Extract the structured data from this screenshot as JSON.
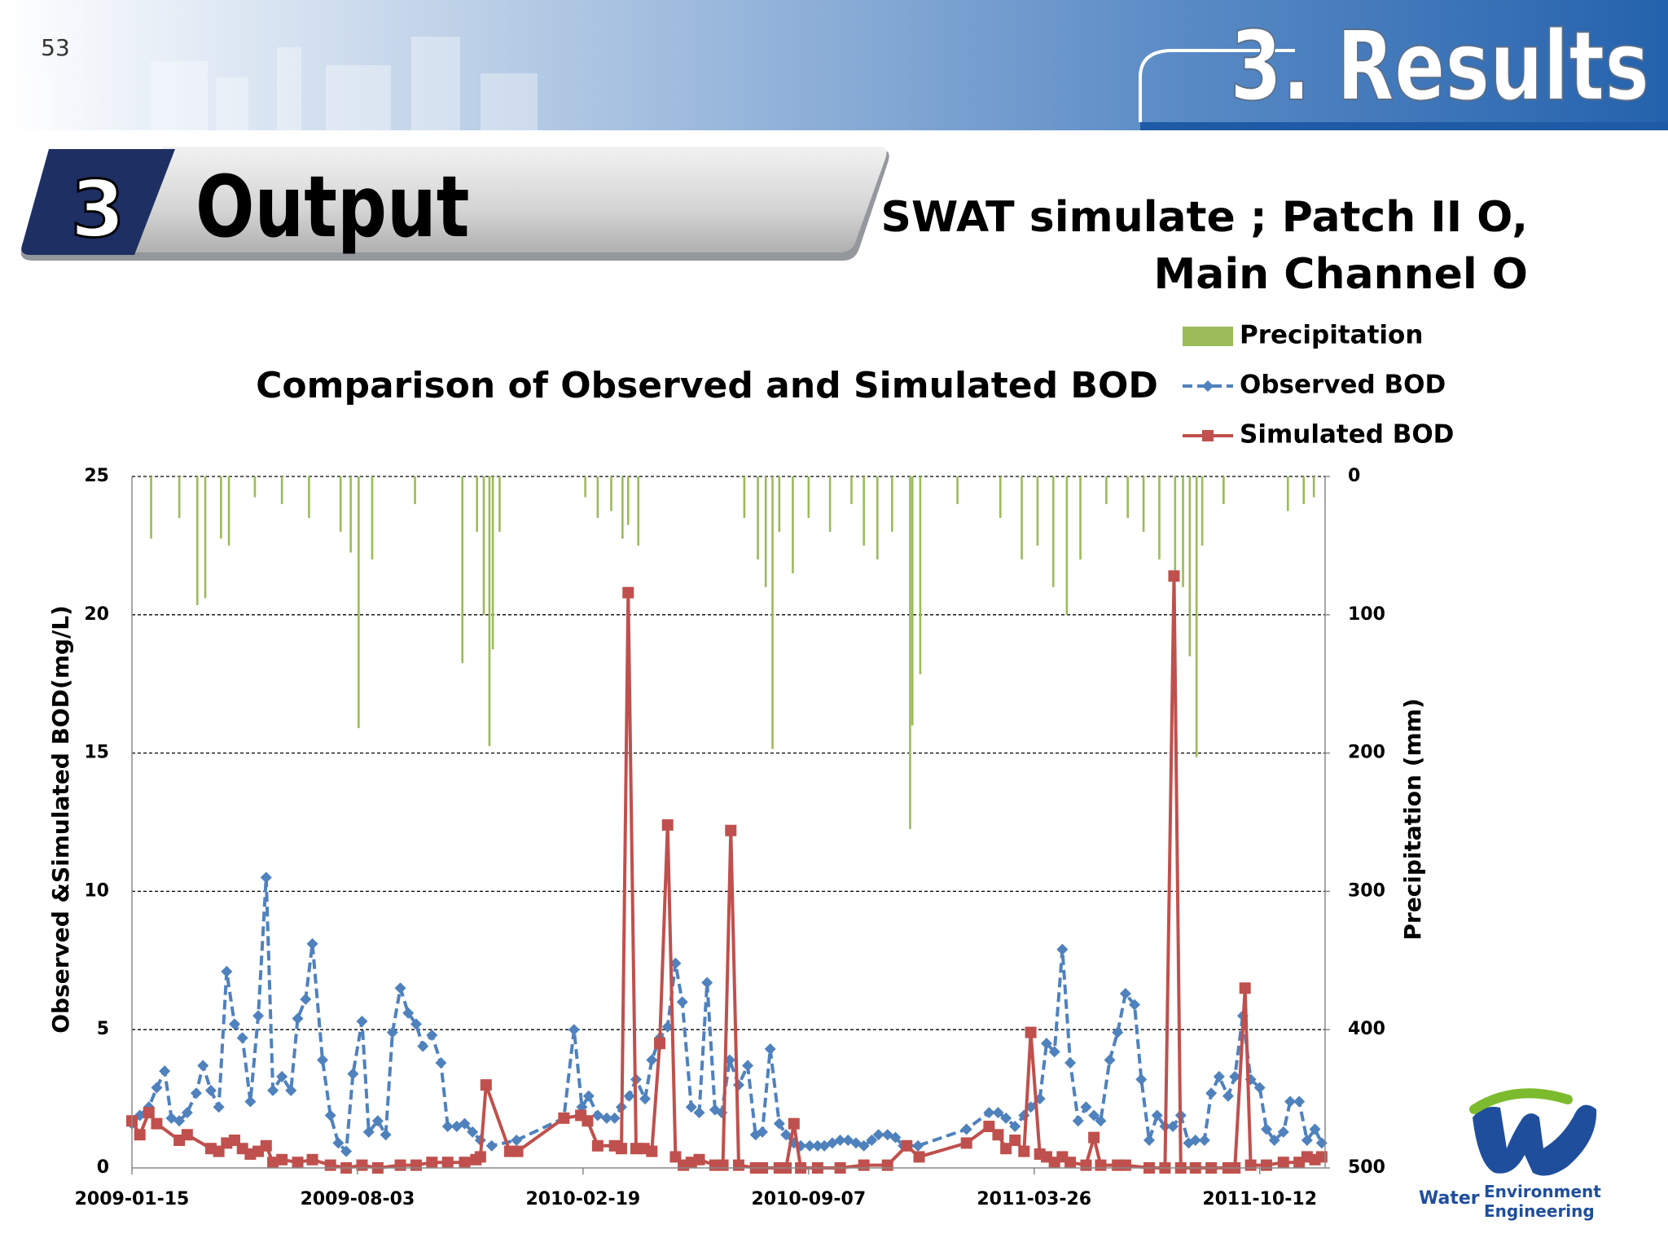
{
  "page_number": "53",
  "section_title": "3. Results",
  "banner": {
    "number": "3",
    "title": "Output"
  },
  "subtitle": [
    "SWAT simulate ; Patch II O,",
    "Main Channel O"
  ],
  "logo": {
    "lines": [
      "Water",
      "Environment",
      "Engineering"
    ]
  },
  "chart_data": {
    "type": "line",
    "title": "Comparison of Observed and Simulated BOD",
    "ylabel": "Observed &Simulated BOD(mg/L)",
    "y2label": "Precipitation (mm)",
    "xlim": [
      "2009-01-15",
      "2011-12-09"
    ],
    "xticks": [
      "2009-01-15",
      "2009-08-03",
      "2010-02-19",
      "2010-09-07",
      "2011-03-26",
      "2011-10-12"
    ],
    "ylim": [
      0,
      25
    ],
    "yticks": [
      0,
      5,
      10,
      15,
      20,
      25
    ],
    "y2lim": [
      0,
      500
    ],
    "y2ticks": [
      0,
      100,
      200,
      300,
      400,
      500
    ],
    "y2_inverted": true,
    "grid": true,
    "legend": "top-right",
    "series": [
      {
        "name": "Precipitation",
        "type": "bar",
        "axis": "y2",
        "color": "#9bbb59",
        "x": [
          "2009-02-01",
          "2009-02-26",
          "2009-03-14",
          "2009-03-21",
          "2009-04-04",
          "2009-04-11",
          "2009-05-04",
          "2009-05-28",
          "2009-06-21",
          "2009-07-19",
          "2009-07-28",
          "2009-08-04",
          "2009-08-16",
          "2009-09-23",
          "2009-11-04",
          "2009-11-17",
          "2009-11-23",
          "2009-11-28",
          "2009-12-01",
          "2009-12-07",
          "2010-02-21",
          "2010-03-04",
          "2010-03-16",
          "2010-03-26",
          "2010-03-31",
          "2010-04-09",
          "2010-07-12",
          "2010-07-24",
          "2010-07-31",
          "2010-08-06",
          "2010-08-12",
          "2010-08-24",
          "2010-09-07",
          "2010-09-26",
          "2010-10-15",
          "2010-10-26",
          "2010-11-07",
          "2010-11-20",
          "2010-12-06",
          "2010-12-08",
          "2010-12-15",
          "2011-01-17",
          "2011-02-24",
          "2011-03-15",
          "2011-03-29",
          "2011-04-12",
          "2011-04-24",
          "2011-05-06",
          "2011-05-29",
          "2011-06-17",
          "2011-07-01",
          "2011-07-15",
          "2011-07-29",
          "2011-08-05",
          "2011-08-11",
          "2011-08-17",
          "2011-08-22",
          "2011-09-10",
          "2011-11-06",
          "2011-11-20",
          "2011-11-29"
        ],
        "values": [
          45,
          30,
          93,
          88,
          45,
          50,
          15,
          20,
          30,
          40,
          55,
          182,
          60,
          20,
          135,
          40,
          100,
          195,
          125,
          40,
          15,
          30,
          25,
          45,
          35,
          50,
          30,
          60,
          80,
          197,
          40,
          70,
          30,
          40,
          20,
          50,
          60,
          40,
          255,
          180,
          143,
          20,
          30,
          60,
          50,
          80,
          100,
          60,
          20,
          30,
          40,
          60,
          70,
          80,
          130,
          203,
          50,
          20,
          25,
          20,
          15
        ]
      },
      {
        "name": "Observed BOD",
        "type": "line",
        "axis": "y",
        "color": "#4f81bd",
        "dashed": true,
        "marker": "diamond",
        "x": [
          "2009-01-15",
          "2009-01-22",
          "2009-01-30",
          "2009-02-06",
          "2009-02-13",
          "2009-02-19",
          "2009-02-26",
          "2009-03-05",
          "2009-03-13",
          "2009-03-19",
          "2009-03-26",
          "2009-04-02",
          "2009-04-09",
          "2009-04-16",
          "2009-04-23",
          "2009-04-30",
          "2009-05-07",
          "2009-05-14",
          "2009-05-20",
          "2009-05-28",
          "2009-06-05",
          "2009-06-11",
          "2009-06-18",
          "2009-06-24",
          "2009-07-03",
          "2009-07-10",
          "2009-07-17",
          "2009-07-24",
          "2009-07-30",
          "2009-08-07",
          "2009-08-13",
          "2009-08-21",
          "2009-08-28",
          "2009-09-03",
          "2009-09-10",
          "2009-09-17",
          "2009-09-24",
          "2009-09-30",
          "2009-10-08",
          "2009-10-16",
          "2009-10-22",
          "2009-10-30",
          "2009-11-06",
          "2009-11-13",
          "2009-11-20",
          "2009-11-30",
          "2009-12-22",
          "2010-02-02",
          "2010-02-11",
          "2010-02-18",
          "2010-02-24",
          "2010-03-04",
          "2010-03-12",
          "2010-03-19",
          "2010-03-25",
          "2010-04-01",
          "2010-04-07",
          "2010-04-15",
          "2010-04-21",
          "2010-04-28",
          "2010-05-05",
          "2010-05-12",
          "2010-05-18",
          "2010-05-26",
          "2010-06-02",
          "2010-06-09",
          "2010-06-16",
          "2010-06-22",
          "2010-06-29",
          "2010-07-07",
          "2010-07-15",
          "2010-07-22",
          "2010-07-28",
          "2010-08-04",
          "2010-08-12",
          "2010-08-18",
          "2010-08-25",
          "2010-08-31",
          "2010-09-08",
          "2010-09-15",
          "2010-09-21",
          "2010-09-28",
          "2010-10-05",
          "2010-10-12",
          "2010-10-19",
          "2010-10-26",
          "2010-11-02",
          "2010-11-08",
          "2010-11-16",
          "2010-11-23",
          "2010-11-30",
          "2010-12-13",
          "2011-01-25",
          "2011-02-14",
          "2011-02-22",
          "2011-03-01",
          "2011-03-09",
          "2011-03-17",
          "2011-03-23",
          "2011-03-31",
          "2011-04-06",
          "2011-04-13",
          "2011-04-20",
          "2011-04-27",
          "2011-05-04",
          "2011-05-11",
          "2011-05-18",
          "2011-05-24",
          "2011-06-01",
          "2011-06-08",
          "2011-06-15",
          "2011-06-23",
          "2011-06-29",
          "2011-07-06",
          "2011-07-13",
          "2011-07-20",
          "2011-07-27",
          "2011-08-03",
          "2011-08-10",
          "2011-08-16",
          "2011-08-24",
          "2011-08-30",
          "2011-09-06",
          "2011-09-14",
          "2011-09-20",
          "2011-09-27",
          "2011-10-04",
          "2011-10-12",
          "2011-10-18",
          "2011-10-25",
          "2011-11-02",
          "2011-11-08",
          "2011-11-16",
          "2011-11-23",
          "2011-11-30",
          "2011-12-06"
        ],
        "values": [
          1.6,
          1.9,
          2.2,
          2.9,
          3.5,
          1.8,
          1.7,
          2.0,
          2.7,
          3.7,
          2.8,
          2.2,
          7.1,
          5.2,
          4.7,
          2.4,
          5.5,
          10.5,
          2.8,
          3.3,
          2.8,
          5.4,
          6.1,
          8.1,
          3.9,
          1.9,
          0.9,
          0.6,
          3.4,
          5.3,
          1.3,
          1.7,
          1.2,
          4.9,
          6.5,
          5.6,
          5.2,
          4.4,
          4.8,
          3.8,
          1.5,
          1.5,
          1.6,
          1.3,
          1.0,
          0.8,
          1.0,
          1.8,
          5.0,
          2.2,
          2.6,
          1.9,
          1.8,
          1.8,
          2.2,
          2.6,
          3.2,
          2.5,
          3.9,
          4.7,
          5.1,
          7.4,
          6.0,
          2.2,
          2.0,
          6.7,
          2.1,
          2.0,
          3.9,
          3.0,
          3.7,
          1.2,
          1.3,
          4.3,
          1.6,
          1.2,
          0.9,
          0.8,
          0.8,
          0.8,
          0.8,
          0.9,
          1.0,
          1.0,
          0.9,
          0.8,
          1.0,
          1.2,
          1.2,
          1.1,
          0.8,
          0.8,
          1.4,
          2.0,
          2.0,
          1.8,
          1.5,
          1.9,
          2.2,
          2.5,
          4.5,
          4.2,
          7.9,
          3.8,
          1.7,
          2.2,
          1.9,
          1.7,
          3.9,
          4.9,
          6.3,
          5.9,
          3.2,
          1.0,
          1.9,
          1.5,
          1.5,
          1.9,
          0.9,
          1.0,
          1.0,
          2.7,
          3.3,
          2.6,
          3.3,
          5.5,
          3.2,
          2.9,
          1.4,
          1.0,
          1.3,
          2.4,
          2.4,
          1.0,
          1.4,
          0.9
        ]
      },
      {
        "name": "Simulated BOD",
        "type": "line",
        "axis": "y",
        "color": "#c0504d",
        "dashed": false,
        "marker": "square",
        "x": [
          "2009-01-15",
          "2009-01-22",
          "2009-01-30",
          "2009-02-06",
          "2009-02-26",
          "2009-03-05",
          "2009-03-26",
          "2009-04-02",
          "2009-04-09",
          "2009-04-16",
          "2009-04-23",
          "2009-04-30",
          "2009-05-07",
          "2009-05-14",
          "2009-05-20",
          "2009-05-28",
          "2009-06-11",
          "2009-06-24",
          "2009-07-10",
          "2009-07-24",
          "2009-08-07",
          "2009-08-21",
          "2009-09-10",
          "2009-09-24",
          "2009-10-08",
          "2009-10-22",
          "2009-11-06",
          "2009-11-16",
          "2009-11-20",
          "2009-11-25",
          "2009-12-16",
          "2009-12-23",
          "2010-02-02",
          "2010-02-17",
          "2010-02-23",
          "2010-03-04",
          "2010-03-19",
          "2010-03-25",
          "2010-03-31",
          "2010-04-07",
          "2010-04-14",
          "2010-04-21",
          "2010-04-28",
          "2010-05-05",
          "2010-05-12",
          "2010-05-19",
          "2010-05-26",
          "2010-06-02",
          "2010-06-16",
          "2010-06-23",
          "2010-06-30",
          "2010-07-07",
          "2010-07-22",
          "2010-07-28",
          "2010-08-12",
          "2010-08-18",
          "2010-08-25",
          "2010-08-31",
          "2010-09-15",
          "2010-10-05",
          "2010-10-26",
          "2010-11-16",
          "2010-12-03",
          "2010-12-14",
          "2011-01-25",
          "2011-02-14",
          "2011-02-22",
          "2011-03-01",
          "2011-03-09",
          "2011-03-17",
          "2011-03-23",
          "2011-03-31",
          "2011-04-06",
          "2011-04-13",
          "2011-04-20",
          "2011-04-27",
          "2011-05-11",
          "2011-05-18",
          "2011-05-24",
          "2011-06-08",
          "2011-06-15",
          "2011-07-06",
          "2011-07-20",
          "2011-07-28",
          "2011-08-03",
          "2011-08-16",
          "2011-08-30",
          "2011-09-14",
          "2011-09-20",
          "2011-09-29",
          "2011-10-04",
          "2011-10-18",
          "2011-11-02",
          "2011-11-16",
          "2011-11-23",
          "2011-11-30",
          "2011-12-06"
        ],
        "values": [
          1.7,
          1.2,
          2.0,
          1.6,
          1.0,
          1.2,
          0.7,
          0.6,
          0.9,
          1.0,
          0.7,
          0.5,
          0.6,
          0.8,
          0.2,
          0.3,
          0.2,
          0.3,
          0.1,
          0.0,
          0.1,
          0.0,
          0.1,
          0.1,
          0.2,
          0.2,
          0.2,
          0.3,
          0.4,
          3.0,
          0.6,
          0.6,
          1.8,
          1.9,
          1.7,
          0.8,
          0.8,
          0.7,
          20.8,
          0.7,
          0.7,
          0.6,
          4.5,
          12.4,
          0.4,
          0.1,
          0.2,
          0.3,
          0.1,
          0.1,
          12.2,
          0.1,
          0.0,
          0.0,
          0.0,
          0.0,
          1.6,
          0.0,
          0.0,
          0.0,
          0.1,
          0.1,
          0.8,
          0.4,
          0.9,
          1.5,
          1.2,
          0.7,
          1.0,
          0.6,
          4.9,
          0.5,
          0.4,
          0.2,
          0.4,
          0.2,
          0.1,
          1.1,
          0.1,
          0.1,
          0.1,
          0.0,
          0.0,
          21.4,
          0.0,
          0.0,
          0.0,
          0.0,
          0.0,
          6.5,
          0.1,
          0.1,
          0.2,
          0.2,
          0.4,
          0.3,
          0.4
        ]
      }
    ]
  }
}
